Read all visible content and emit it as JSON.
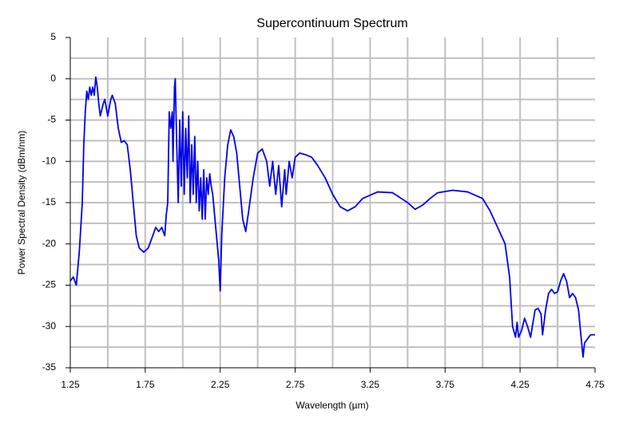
{
  "chart_data": {
    "type": "line",
    "title": "Supercontinuum Spectrum",
    "xlabel": "Wavelength (µm)",
    "ylabel": "Power Spectral Density (dBm/nm)",
    "xlim": [
      1.25,
      4.75
    ],
    "ylim": [
      -35,
      5
    ],
    "xticks": [
      1.25,
      1.75,
      2.25,
      2.75,
      3.25,
      3.75,
      4.25,
      4.75
    ],
    "yticks": [
      5,
      0,
      -5,
      -10,
      -15,
      -20,
      -25,
      -30,
      -35
    ],
    "xgrid": [
      1.5,
      1.75,
      2,
      2.25,
      2.5,
      2.75,
      3,
      3.25,
      3.5,
      3.75,
      4,
      4.25,
      4.5
    ],
    "ygrid": [
      2.5,
      0,
      -2.5,
      -5,
      -7.5,
      -10,
      -12.5,
      -15,
      -17.5,
      -20,
      -22.5,
      -25,
      -27.5,
      -30,
      -32.5
    ],
    "grid": true,
    "x": [
      1.25,
      1.27,
      1.29,
      1.3,
      1.31,
      1.33,
      1.34,
      1.35,
      1.36,
      1.37,
      1.38,
      1.39,
      1.4,
      1.41,
      1.42,
      1.43,
      1.44,
      1.45,
      1.47,
      1.48,
      1.5,
      1.52,
      1.53,
      1.55,
      1.57,
      1.59,
      1.61,
      1.63,
      1.65,
      1.67,
      1.69,
      1.71,
      1.74,
      1.77,
      1.8,
      1.82,
      1.84,
      1.86,
      1.88,
      1.89,
      1.9,
      1.91,
      1.92,
      1.93,
      1.935,
      1.945,
      1.95,
      1.96,
      1.97,
      1.98,
      1.99,
      2.0,
      2.01,
      2.02,
      2.03,
      2.04,
      2.05,
      2.06,
      2.07,
      2.08,
      2.09,
      2.1,
      2.11,
      2.12,
      2.13,
      2.14,
      2.15,
      2.16,
      2.17,
      2.18,
      2.19,
      2.2,
      2.22,
      2.24,
      2.25,
      2.26,
      2.28,
      2.3,
      2.32,
      2.34,
      2.36,
      2.38,
      2.4,
      2.42,
      2.44,
      2.47,
      2.5,
      2.53,
      2.56,
      2.58,
      2.6,
      2.62,
      2.64,
      2.66,
      2.68,
      2.69,
      2.71,
      2.73,
      2.75,
      2.78,
      2.82,
      2.86,
      2.9,
      2.95,
      3.0,
      3.05,
      3.1,
      3.15,
      3.2,
      3.3,
      3.4,
      3.5,
      3.55,
      3.6,
      3.65,
      3.7,
      3.8,
      3.9,
      4.0,
      4.05,
      4.1,
      4.15,
      4.18,
      4.2,
      4.22,
      4.23,
      4.24,
      4.26,
      4.28,
      4.3,
      4.32,
      4.35,
      4.37,
      4.39,
      4.4,
      4.42,
      4.44,
      4.46,
      4.48,
      4.5,
      4.52,
      4.54,
      4.56,
      4.58,
      4.6,
      4.62,
      4.64,
      4.65,
      4.67,
      4.68,
      4.7,
      4.72,
      4.75
    ],
    "series": [
      {
        "color": "#0000ee",
        "values": [
          -24.5,
          -24,
          -25,
          -23,
          -21,
          -15,
          -8,
          -4,
          -1.5,
          -2.5,
          -1,
          -2,
          -1,
          -2,
          0.2,
          -1,
          -3,
          -4.5,
          -3,
          -2.5,
          -4.5,
          -2.5,
          -2,
          -3,
          -6,
          -7.7,
          -7.5,
          -8,
          -11,
          -15,
          -19,
          -20.5,
          -21,
          -20.5,
          -19,
          -18,
          -18.5,
          -18,
          -19,
          -16.5,
          -15,
          -4,
          -6,
          -4,
          -10,
          -1,
          0,
          -8,
          -15,
          -5,
          -13,
          -4,
          -14,
          -6,
          -12,
          -4.5,
          -15,
          -8,
          -14,
          -7,
          -15,
          -10,
          -16,
          -12,
          -17,
          -11,
          -17,
          -12,
          -14,
          -11.5,
          -13,
          -14,
          -18,
          -22,
          -25.7,
          -19,
          -12,
          -8,
          -6.2,
          -7,
          -9,
          -13,
          -17,
          -18.5,
          -16,
          -12,
          -9,
          -8.5,
          -10,
          -13,
          -10,
          -14,
          -10.5,
          -15.5,
          -11,
          -14,
          -10,
          -12,
          -9.5,
          -9,
          -9.2,
          -9.5,
          -10.5,
          -12,
          -14,
          -15.5,
          -16,
          -15.5,
          -14.5,
          -13.7,
          -13.8,
          -15,
          -15.8,
          -15.3,
          -14.5,
          -13.8,
          -13.5,
          -13.7,
          -14.5,
          -16,
          -18,
          -20,
          -24,
          -30,
          -31.3,
          -29.5,
          -31.3,
          -30.5,
          -29,
          -30,
          -31.3,
          -28,
          -27.8,
          -28.5,
          -31,
          -28,
          -26,
          -25.5,
          -26,
          -25.8,
          -24.5,
          -23.6,
          -24.5,
          -26.5,
          -26,
          -26.5,
          -28,
          -30,
          -33.7,
          -32,
          -31.5,
          -31,
          -31
        ]
      }
    ]
  }
}
